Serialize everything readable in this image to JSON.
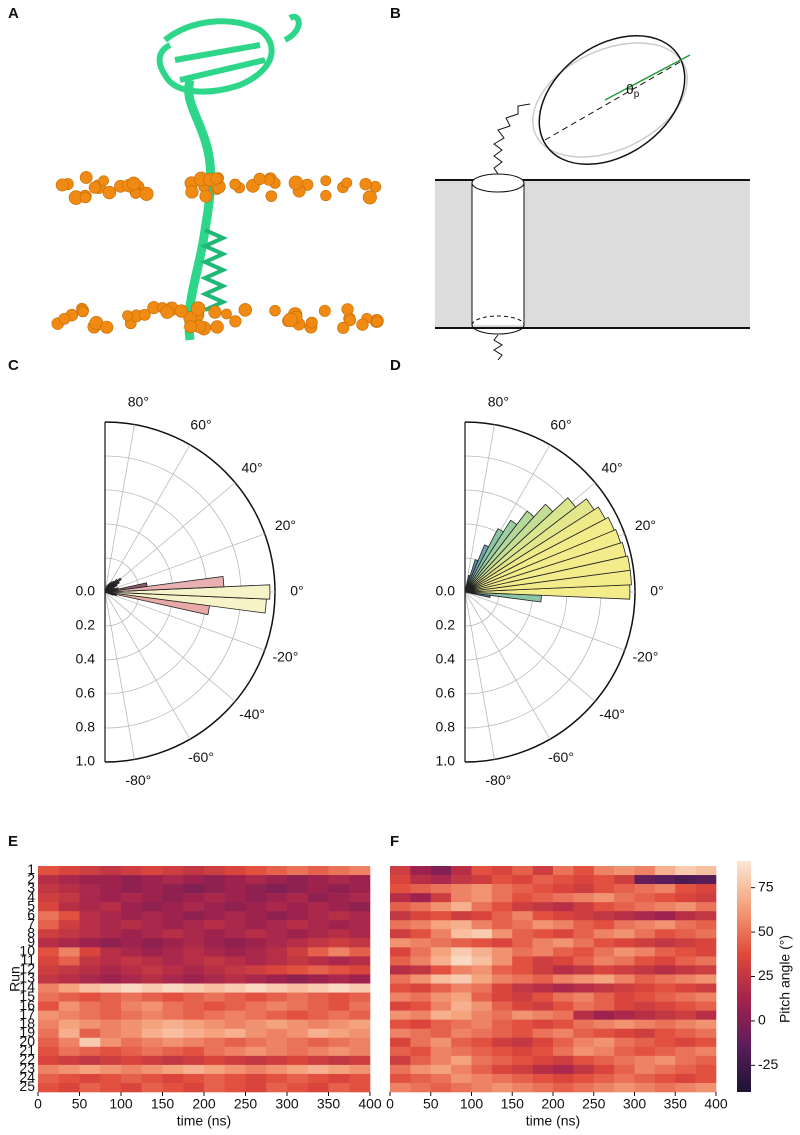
{
  "panel_labels": [
    "A",
    "B",
    "C",
    "D",
    "E",
    "F"
  ],
  "diagram": {
    "theta": "θ",
    "theta_sub": "p"
  },
  "chart_data": [
    {
      "type": "polar-bar",
      "width": 5,
      "x": [
        -20,
        -15,
        -10,
        -5,
        0,
        5,
        10,
        15,
        20,
        30,
        35,
        40,
        45,
        50,
        55,
        60,
        65,
        70
      ],
      "values": [
        0.05,
        0.07,
        0.62,
        0.95,
        0.97,
        0.7,
        0.25,
        0.08,
        0.06,
        0.08,
        0.1,
        0.12,
        0.1,
        0.08,
        0.07,
        0.06,
        0.05,
        0.04
      ],
      "colors": [
        "#4a3b4f",
        "#4a3b4f",
        "#e8a8a8",
        "#f7f3c8",
        "#f7f3c8",
        "#e8b0b0",
        "#8a5a6a",
        "#4a3b4f",
        "#4a3b4f",
        "#4a3b4f",
        "#4a3b4f",
        "#4a3b4f",
        "#4a3b4f",
        "#4a3b4f",
        "#4a3b4f",
        "#4a3b4f",
        "#4a3b4f",
        "#4a3b4f"
      ],
      "xlim": [
        -90,
        90
      ],
      "xticks": [
        {
          "value": 80,
          "label": "80°"
        },
        {
          "value": 60,
          "label": "60°"
        },
        {
          "value": 40,
          "label": "40°"
        },
        {
          "value": 20,
          "label": "20°"
        },
        {
          "value": 0,
          "label": "0°"
        },
        {
          "value": -20,
          "label": "-20°"
        },
        {
          "value": -40,
          "label": "-40°"
        },
        {
          "value": -60,
          "label": "-60°"
        },
        {
          "value": -80,
          "label": "-80°"
        }
      ],
      "ylim": [
        0,
        1
      ],
      "yticks": [
        {
          "value": 0,
          "label": "0.0"
        },
        0.2,
        0.4,
        0.6,
        0.8,
        {
          "value": 1,
          "label": "1.0"
        }
      ]
    },
    {
      "type": "polar-bar",
      "width": 5,
      "x": [
        -10,
        -5,
        0,
        5,
        10,
        15,
        20,
        25,
        30,
        35,
        40,
        45,
        50,
        55,
        60,
        65,
        70,
        75
      ],
      "values": [
        0.15,
        0.45,
        0.97,
        0.98,
        0.98,
        0.97,
        0.96,
        0.95,
        0.93,
        0.9,
        0.82,
        0.7,
        0.6,
        0.5,
        0.42,
        0.3,
        0.2,
        0.1
      ],
      "colors": [
        "#5a7d9a",
        "#8cc4a8",
        "#f2ec8a",
        "#f2ec8a",
        "#f2ec8a",
        "#f2ec8a",
        "#f2ec8a",
        "#f2ec8a",
        "#eeea8a",
        "#e4e68c",
        "#d9e58f",
        "#c5de95",
        "#b5d99a",
        "#9ccfa2",
        "#8cc4a8",
        "#6ba3b0",
        "#5f8da8",
        "#5a7d9a"
      ],
      "xlim": [
        -90,
        90
      ],
      "xticks": [
        {
          "value": 80,
          "label": "80°"
        },
        {
          "value": 60,
          "label": "60°"
        },
        {
          "value": 40,
          "label": "40°"
        },
        {
          "value": 20,
          "label": "20°"
        },
        {
          "value": 0,
          "label": "0°"
        },
        {
          "value": -20,
          "label": "-20°"
        },
        {
          "value": -40,
          "label": "-40°"
        },
        {
          "value": -60,
          "label": "-60°"
        },
        {
          "value": -80,
          "label": "-80°"
        }
      ],
      "ylim": [
        0,
        1
      ],
      "yticks": [
        {
          "value": 0,
          "label": "0.0"
        },
        0.2,
        0.4,
        0.6,
        0.8,
        {
          "value": 1,
          "label": "1.0"
        }
      ]
    },
    {
      "type": "heatmap",
      "xlabel": "time (ns)",
      "ylabel": "Run",
      "xlim": [
        0,
        400
      ],
      "xticks": [
        0,
        50,
        100,
        150,
        200,
        250,
        300,
        350,
        400
      ],
      "rows": [
        1,
        2,
        3,
        4,
        5,
        6,
        7,
        8,
        9,
        10,
        11,
        12,
        13,
        14,
        15,
        16,
        17,
        18,
        19,
        20,
        21,
        22,
        23,
        24,
        25
      ],
      "zlim": [
        -40,
        90
      ],
      "colormap": [
        "#1c1433",
        "#5a1d5a",
        "#a3234d",
        "#e04a3a",
        "#f4a07a",
        "#fbe6d4"
      ],
      "values": [
        [
          40,
          35,
          30,
          25,
          30,
          35,
          30,
          25,
          30,
          35,
          40,
          45,
          50,
          45,
          50,
          55
        ],
        [
          20,
          15,
          10,
          10,
          5,
          10,
          15,
          10,
          5,
          10,
          15,
          10,
          5,
          10,
          15,
          10
        ],
        [
          25,
          20,
          15,
          10,
          5,
          10,
          5,
          0,
          5,
          10,
          5,
          0,
          5,
          10,
          5,
          10
        ],
        [
          30,
          25,
          15,
          10,
          15,
          10,
          5,
          10,
          15,
          10,
          5,
          10,
          15,
          5,
          10,
          15
        ],
        [
          35,
          20,
          15,
          20,
          10,
          5,
          10,
          15,
          10,
          5,
          10,
          15,
          10,
          15,
          10,
          5
        ],
        [
          50,
          40,
          20,
          15,
          10,
          15,
          10,
          5,
          10,
          15,
          10,
          5,
          10,
          15,
          20,
          15
        ],
        [
          45,
          30,
          20,
          15,
          20,
          15,
          10,
          15,
          20,
          15,
          10,
          15,
          20,
          15,
          10,
          15
        ],
        [
          30,
          25,
          20,
          15,
          10,
          15,
          20,
          15,
          10,
          15,
          20,
          15,
          10,
          15,
          20,
          15
        ],
        [
          20,
          15,
          10,
          5,
          10,
          5,
          10,
          15,
          10,
          5,
          10,
          15,
          20,
          25,
          30,
          25
        ],
        [
          40,
          55,
          35,
          20,
          15,
          10,
          15,
          20,
          15,
          10,
          15,
          20,
          30,
          45,
          55,
          45
        ],
        [
          35,
          45,
          25,
          20,
          25,
          20,
          15,
          20,
          25,
          20,
          15,
          20,
          25,
          20,
          15,
          20
        ],
        [
          30,
          25,
          20,
          15,
          20,
          25,
          20,
          15,
          20,
          25,
          30,
          35,
          40,
          45,
          40,
          35
        ],
        [
          25,
          20,
          15,
          10,
          15,
          20,
          15,
          10,
          15,
          20,
          15,
          10,
          5,
          10,
          15,
          10
        ],
        [
          55,
          65,
          75,
          80,
          85,
          80,
          85,
          80,
          75,
          80,
          85,
          80,
          75,
          80,
          85,
          80
        ],
        [
          50,
          45,
          40,
          45,
          50,
          45,
          40,
          45,
          50,
          45,
          40,
          45,
          50,
          45,
          40,
          45
        ],
        [
          40,
          60,
          50,
          45,
          55,
          60,
          50,
          45,
          40,
          45,
          50,
          55,
          50,
          45,
          40,
          50
        ],
        [
          60,
          55,
          50,
          45,
          50,
          55,
          50,
          45,
          50,
          55,
          50,
          45,
          40,
          45,
          50,
          45
        ],
        [
          55,
          65,
          60,
          55,
          60,
          65,
          70,
          65,
          60,
          55,
          60,
          65,
          60,
          55,
          60,
          65
        ],
        [
          50,
          70,
          45,
          55,
          60,
          70,
          75,
          70,
          65,
          70,
          60,
          55,
          60,
          70,
          65,
          60
        ],
        [
          45,
          55,
          80,
          60,
          50,
          55,
          60,
          55,
          50,
          45,
          50,
          55,
          50,
          45,
          50,
          55
        ],
        [
          40,
          50,
          45,
          40,
          45,
          50,
          45,
          40,
          50,
          55,
          60,
          55,
          50,
          55,
          60,
          55
        ],
        [
          35,
          30,
          25,
          30,
          35,
          30,
          25,
          30,
          35,
          30,
          25,
          30,
          35,
          30,
          25,
          30
        ],
        [
          55,
          60,
          65,
          60,
          55,
          60,
          65,
          70,
          65,
          60,
          55,
          60,
          65,
          70,
          65,
          60
        ],
        [
          45,
          40,
          35,
          40,
          45,
          40,
          35,
          40,
          45,
          40,
          35,
          40,
          45,
          40,
          35,
          40
        ],
        [
          40,
          35,
          45,
          40,
          35,
          45,
          40,
          35,
          45,
          40,
          35,
          45,
          40,
          35,
          45,
          40
        ]
      ]
    },
    {
      "type": "heatmap",
      "xlabel": "time (ns)",
      "xlim": [
        0,
        400
      ],
      "xticks": [
        0,
        50,
        100,
        150,
        200,
        250,
        300,
        350,
        400
      ],
      "zlim": [
        -40,
        90
      ],
      "colormap": [
        "#1c1433",
        "#5a1d5a",
        "#a3234d",
        "#e04a3a",
        "#f4a07a",
        "#fbe6d4"
      ],
      "colorbar": {
        "label": "Pitch angle (°)",
        "ticks": [
          -25,
          0,
          25,
          50,
          75
        ]
      },
      "values": [
        [
          30,
          10,
          0,
          20,
          40,
          35,
          45,
          30,
          50,
          40,
          55,
          60,
          55,
          70,
          80,
          75
        ],
        [
          35,
          20,
          15,
          25,
          30,
          40,
          35,
          45,
          40,
          35,
          40,
          30,
          -10,
          -15,
          -20,
          -15
        ],
        [
          40,
          45,
          50,
          55,
          60,
          50,
          45,
          40,
          35,
          30,
          40,
          45,
          50,
          55,
          40,
          35
        ],
        [
          20,
          10,
          30,
          55,
          60,
          50,
          40,
          45,
          50,
          55,
          60,
          50,
          45,
          40,
          35,
          30
        ],
        [
          45,
          50,
          60,
          70,
          50,
          40,
          30,
          25,
          20,
          30,
          40,
          45,
          50,
          55,
          60,
          50
        ],
        [
          25,
          35,
          40,
          30,
          35,
          45,
          55,
          40,
          35,
          30,
          25,
          20,
          15,
          10,
          20,
          25
        ],
        [
          50,
          55,
          65,
          70,
          55,
          45,
          50,
          60,
          55,
          45,
          40,
          50,
          55,
          60,
          50,
          45
        ],
        [
          30,
          40,
          55,
          75,
          80,
          60,
          45,
          40,
          35,
          45,
          55,
          60,
          50,
          40,
          45,
          50
        ],
        [
          60,
          55,
          50,
          45,
          40,
          35,
          45,
          55,
          60,
          50,
          40,
          35,
          30,
          25,
          30,
          35
        ],
        [
          35,
          50,
          65,
          80,
          70,
          60,
          50,
          55,
          45,
          40,
          50,
          60,
          55,
          45,
          40,
          35
        ],
        [
          45,
          55,
          70,
          85,
          75,
          60,
          40,
          30,
          35,
          45,
          55,
          50,
          40,
          35,
          45,
          50
        ],
        [
          20,
          25,
          40,
          55,
          60,
          45,
          40,
          30,
          20,
          25,
          35,
          30,
          25,
          20,
          25,
          30
        ],
        [
          50,
          60,
          75,
          80,
          65,
          55,
          50,
          45,
          55,
          60,
          65,
          55,
          45,
          50,
          55,
          60
        ],
        [
          40,
          35,
          45,
          55,
          50,
          35,
          25,
          20,
          15,
          20,
          25,
          30,
          35,
          40,
          35,
          30
        ],
        [
          55,
          50,
          60,
          65,
          45,
          35,
          30,
          40,
          50,
          55,
          45,
          35,
          40,
          45,
          50,
          55
        ],
        [
          35,
          40,
          55,
          70,
          60,
          45,
          35,
          30,
          40,
          50,
          45,
          35,
          30,
          35,
          40,
          45
        ],
        [
          60,
          55,
          70,
          65,
          55,
          50,
          60,
          55,
          50,
          20,
          10,
          15,
          20,
          25,
          30,
          20
        ],
        [
          40,
          35,
          45,
          50,
          55,
          45,
          40,
          35,
          40,
          50,
          55,
          60,
          55,
          50,
          55,
          60
        ],
        [
          55,
          50,
          45,
          55,
          50,
          45,
          40,
          50,
          55,
          45,
          40,
          35,
          30,
          40,
          45,
          50
        ],
        [
          35,
          50,
          60,
          45,
          40,
          30,
          25,
          35,
          45,
          55,
          60,
          50,
          45,
          40,
          35,
          40
        ],
        [
          45,
          40,
          55,
          50,
          45,
          40,
          35,
          40,
          50,
          60,
          55,
          45,
          40,
          45,
          50,
          55
        ],
        [
          30,
          45,
          55,
          65,
          50,
          45,
          40,
          35,
          30,
          40,
          45,
          50,
          55,
          60,
          50,
          45
        ],
        [
          50,
          60,
          65,
          55,
          45,
          35,
          30,
          20,
          15,
          25,
          35,
          45,
          55,
          50,
          45,
          40
        ],
        [
          40,
          45,
          50,
          60,
          55,
          50,
          45,
          40,
          35,
          40,
          45,
          50,
          45,
          40,
          35,
          40
        ],
        [
          55,
          50,
          45,
          50,
          55,
          60,
          55,
          50,
          45,
          50,
          55,
          60,
          55,
          50,
          55,
          60
        ]
      ]
    }
  ]
}
